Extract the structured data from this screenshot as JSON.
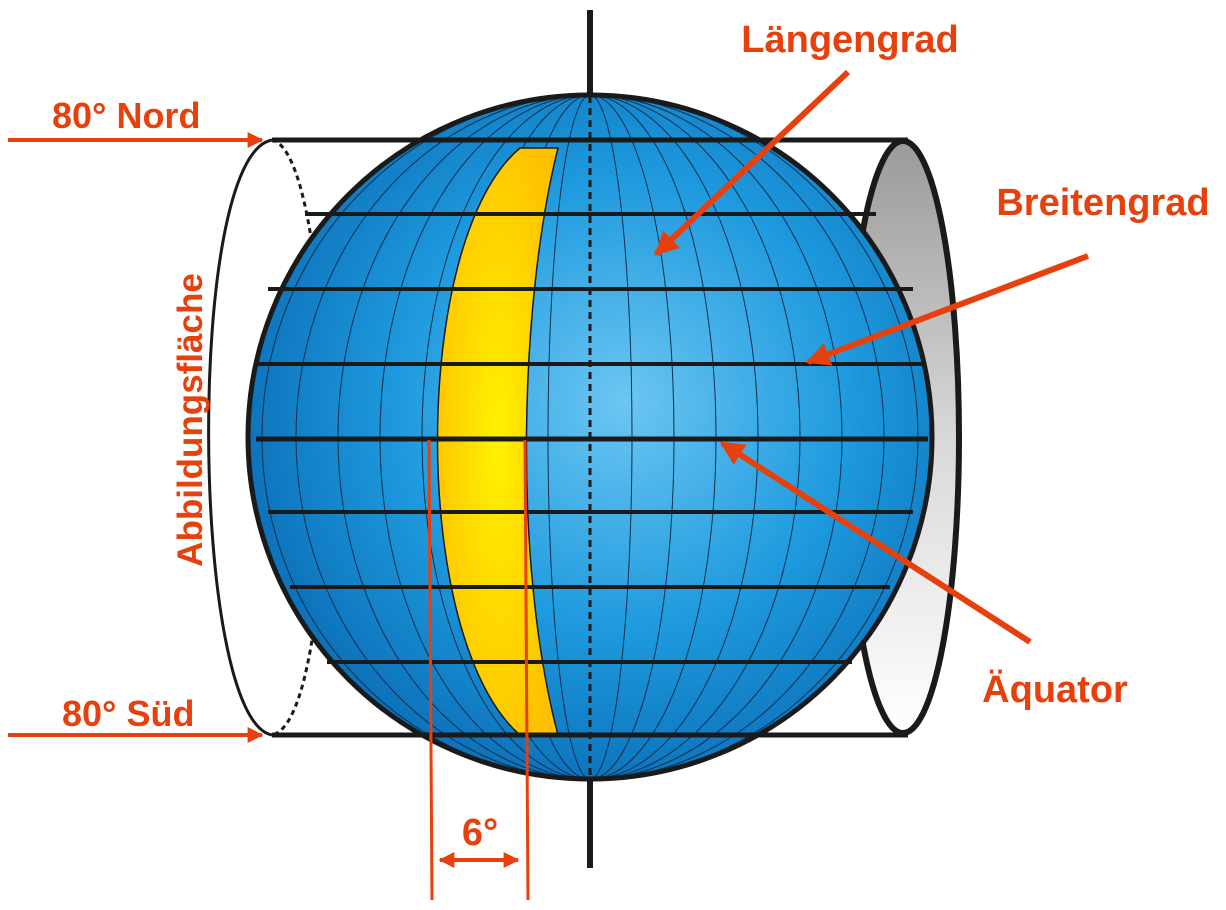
{
  "labels": {
    "longitude": "Längengrad",
    "latitude": "Breitengrad",
    "equator": "Äquator",
    "north": "80° Nord",
    "south": "80° Süd",
    "surface": "Abbildungsfläche",
    "zone_width": "6°"
  },
  "colors": {
    "accent": "#e8400c",
    "globe_light": "#5bbdf0",
    "globe_mid": "#1a98dd",
    "globe_dark": "#0b6fb8",
    "zone_yellow": "#ffe600",
    "zone_orange": "#ffc400",
    "outline": "#1a1a1a"
  }
}
